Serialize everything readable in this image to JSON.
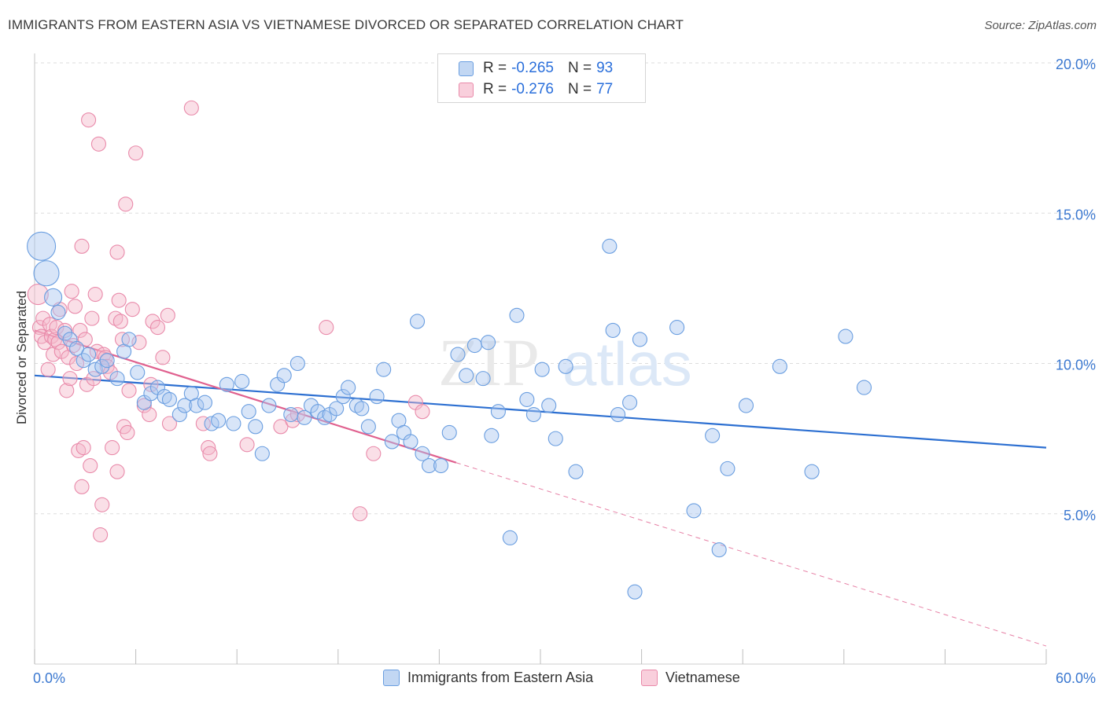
{
  "header": {
    "title": "IMMIGRANTS FROM EASTERN ASIA VS VIETNAMESE DIVORCED OR SEPARATED CORRELATION CHART",
    "source": "Source: ZipAtlas.com"
  },
  "watermark": {
    "zip": "ZIP",
    "atlas": "atlas"
  },
  "legend": {
    "rows": [
      {
        "r_label": "R =",
        "r_value": "-0.265",
        "n_label": "N =",
        "n_value": "93"
      },
      {
        "r_label": "R =",
        "r_value": "-0.276",
        "n_label": "N =",
        "n_value": "77"
      }
    ]
  },
  "colors": {
    "blue_fill": "#a9c6ef",
    "blue_stroke": "#6a9ee0",
    "blue_line": "#2c6fd1",
    "pink_fill": "#f5b7ca",
    "pink_stroke": "#e98aaa",
    "pink_line": "#e0618f",
    "grid": "#dddddd",
    "tick_text": "#3b78d0"
  },
  "chart_data": {
    "type": "scatter",
    "title": "IMMIGRANTS FROM EASTERN ASIA VS VIETNAMESE DIVORCED OR SEPARATED CORRELATION CHART",
    "xlabel": "",
    "ylabel": "Divorced or Separated",
    "xlim": [
      0,
      60
    ],
    "ylim": [
      0,
      20
    ],
    "x_tick_labels": [
      "0.0%",
      "60.0%"
    ],
    "y_ticks": [
      5,
      10,
      15,
      20
    ],
    "y_tick_labels": [
      "5.0%",
      "10.0%",
      "15.0%",
      "20.0%"
    ],
    "grid": true,
    "legend_placement": "top-center",
    "series": [
      {
        "name": "Immigrants from Eastern Asia",
        "color": "#a9c6ef",
        "r": -0.265,
        "n": 93,
        "trend": {
          "x": [
            0,
            60
          ],
          "y": [
            9.6,
            7.2
          ]
        },
        "points": [
          [
            0.4,
            13.9,
            18
          ],
          [
            0.7,
            13.0,
            16
          ],
          [
            1.1,
            12.2,
            11
          ],
          [
            1.4,
            11.7,
            9
          ],
          [
            1.8,
            11.0,
            9
          ],
          [
            2.1,
            10.8,
            9
          ],
          [
            2.5,
            10.5,
            9
          ],
          [
            2.9,
            10.1,
            9
          ],
          [
            3.2,
            10.3,
            9
          ],
          [
            3.6,
            9.8,
            9
          ],
          [
            4.0,
            9.9,
            9
          ],
          [
            4.3,
            10.1,
            9
          ],
          [
            4.9,
            9.5,
            9
          ],
          [
            5.3,
            10.4,
            9
          ],
          [
            5.6,
            10.8,
            9
          ],
          [
            6.1,
            9.7,
            9
          ],
          [
            6.5,
            8.7,
            9
          ],
          [
            6.9,
            9.0,
            9
          ],
          [
            7.3,
            9.2,
            9
          ],
          [
            7.7,
            8.9,
            9
          ],
          [
            8.0,
            8.8,
            9
          ],
          [
            8.6,
            8.3,
            9
          ],
          [
            8.9,
            8.6,
            9
          ],
          [
            9.3,
            9.0,
            9
          ],
          [
            9.6,
            8.6,
            9
          ],
          [
            10.1,
            8.7,
            9
          ],
          [
            10.5,
            8.0,
            9
          ],
          [
            10.9,
            8.1,
            9
          ],
          [
            11.4,
            9.3,
            9
          ],
          [
            11.8,
            8.0,
            9
          ],
          [
            12.3,
            9.4,
            9
          ],
          [
            12.7,
            8.4,
            9
          ],
          [
            13.1,
            7.9,
            9
          ],
          [
            13.5,
            7.0,
            9
          ],
          [
            13.9,
            8.6,
            9
          ],
          [
            14.4,
            9.3,
            9
          ],
          [
            14.8,
            9.6,
            9
          ],
          [
            15.2,
            8.3,
            9
          ],
          [
            15.6,
            10.0,
            9
          ],
          [
            16.0,
            8.2,
            9
          ],
          [
            16.4,
            8.6,
            9
          ],
          [
            16.8,
            8.4,
            9
          ],
          [
            17.2,
            8.2,
            9
          ],
          [
            17.5,
            8.3,
            9
          ],
          [
            17.9,
            8.5,
            9
          ],
          [
            18.3,
            8.9,
            9
          ],
          [
            18.6,
            9.2,
            9
          ],
          [
            19.1,
            8.6,
            9
          ],
          [
            19.4,
            8.5,
            9
          ],
          [
            19.8,
            7.9,
            9
          ],
          [
            20.3,
            8.9,
            9
          ],
          [
            20.7,
            9.8,
            9
          ],
          [
            21.2,
            7.4,
            9
          ],
          [
            21.6,
            8.1,
            9
          ],
          [
            21.9,
            7.7,
            9
          ],
          [
            22.3,
            7.4,
            9
          ],
          [
            22.7,
            11.4,
            9
          ],
          [
            23.0,
            7.0,
            9
          ],
          [
            23.4,
            6.6,
            9
          ],
          [
            24.1,
            6.6,
            9
          ],
          [
            24.6,
            7.7,
            9
          ],
          [
            25.1,
            10.3,
            9
          ],
          [
            25.6,
            9.6,
            9
          ],
          [
            26.1,
            10.6,
            9
          ],
          [
            26.6,
            9.5,
            9
          ],
          [
            26.9,
            10.7,
            9
          ],
          [
            27.1,
            7.6,
            9
          ],
          [
            27.5,
            8.4,
            9
          ],
          [
            28.2,
            4.2,
            9
          ],
          [
            28.6,
            11.6,
            9
          ],
          [
            29.2,
            8.8,
            9
          ],
          [
            29.6,
            8.3,
            9
          ],
          [
            30.1,
            9.8,
            9
          ],
          [
            30.5,
            8.6,
            9
          ],
          [
            30.9,
            7.5,
            9
          ],
          [
            31.5,
            9.9,
            9
          ],
          [
            32.1,
            6.4,
            9
          ],
          [
            34.1,
            13.9,
            9
          ],
          [
            34.3,
            11.1,
            9
          ],
          [
            34.6,
            8.3,
            9
          ],
          [
            35.3,
            8.7,
            9
          ],
          [
            35.6,
            2.4,
            9
          ],
          [
            35.9,
            10.8,
            9
          ],
          [
            38.1,
            11.2,
            9
          ],
          [
            39.1,
            5.1,
            9
          ],
          [
            40.2,
            7.6,
            9
          ],
          [
            40.6,
            3.8,
            9
          ],
          [
            41.1,
            6.5,
            9
          ],
          [
            42.2,
            8.6,
            9
          ],
          [
            44.2,
            9.9,
            9
          ],
          [
            46.1,
            6.4,
            9
          ],
          [
            48.1,
            10.9,
            9
          ],
          [
            49.2,
            9.2,
            9
          ]
        ]
      },
      {
        "name": "Vietnamese",
        "color": "#f5b7ca",
        "r": -0.276,
        "n": 77,
        "trend": {
          "x": [
            0,
            25
          ],
          "y": [
            11.1,
            6.7
          ]
        },
        "trend_extension": {
          "x": [
            25,
            60
          ],
          "y": [
            6.7,
            0.6
          ]
        },
        "points": [
          [
            0.2,
            12.3,
            13
          ],
          [
            0.3,
            11.2,
            9
          ],
          [
            0.4,
            10.9,
            9
          ],
          [
            0.5,
            11.5,
            9
          ],
          [
            0.6,
            10.7,
            9
          ],
          [
            0.8,
            9.8,
            9
          ],
          [
            0.9,
            11.3,
            9
          ],
          [
            1.0,
            10.9,
            9
          ],
          [
            1.1,
            10.3,
            9
          ],
          [
            1.2,
            10.8,
            9
          ],
          [
            1.3,
            11.2,
            9
          ],
          [
            1.4,
            10.7,
            9
          ],
          [
            1.5,
            11.8,
            9
          ],
          [
            1.6,
            10.4,
            9
          ],
          [
            1.8,
            11.1,
            9
          ],
          [
            1.9,
            9.1,
            9
          ],
          [
            2.0,
            10.2,
            9
          ],
          [
            2.1,
            9.5,
            9
          ],
          [
            2.2,
            12.4,
            9
          ],
          [
            2.3,
            10.6,
            9
          ],
          [
            2.4,
            11.9,
            9
          ],
          [
            2.5,
            10.0,
            9
          ],
          [
            2.6,
            7.1,
            9
          ],
          [
            2.7,
            11.1,
            9
          ],
          [
            2.8,
            13.9,
            9
          ],
          [
            2.8,
            5.9,
            9
          ],
          [
            2.9,
            7.2,
            9
          ],
          [
            3.0,
            10.8,
            9
          ],
          [
            3.1,
            9.3,
            9
          ],
          [
            3.2,
            18.1,
            9
          ],
          [
            3.3,
            6.6,
            9
          ],
          [
            3.4,
            11.5,
            9
          ],
          [
            3.5,
            9.5,
            9
          ],
          [
            3.6,
            12.3,
            9
          ],
          [
            3.7,
            10.4,
            9
          ],
          [
            3.8,
            17.3,
            9
          ],
          [
            3.9,
            4.3,
            9
          ],
          [
            4.0,
            5.3,
            9
          ],
          [
            4.1,
            10.3,
            9
          ],
          [
            4.2,
            10.2,
            9
          ],
          [
            4.3,
            9.9,
            9
          ],
          [
            4.5,
            9.7,
            9
          ],
          [
            4.6,
            7.2,
            9
          ],
          [
            4.8,
            11.5,
            9
          ],
          [
            4.9,
            6.4,
            9
          ],
          [
            4.9,
            13.7,
            9
          ],
          [
            5.0,
            12.1,
            9
          ],
          [
            5.1,
            11.4,
            9
          ],
          [
            5.2,
            10.8,
            9
          ],
          [
            5.3,
            7.9,
            9
          ],
          [
            5.4,
            15.3,
            9
          ],
          [
            5.5,
            7.7,
            9
          ],
          [
            5.6,
            9.1,
            9
          ],
          [
            5.8,
            11.8,
            9
          ],
          [
            6.0,
            17.0,
            9
          ],
          [
            6.2,
            10.7,
            9
          ],
          [
            6.5,
            8.6,
            9
          ],
          [
            6.8,
            8.3,
            9
          ],
          [
            6.9,
            9.3,
            9
          ],
          [
            7.0,
            11.4,
            9
          ],
          [
            7.3,
            11.2,
            9
          ],
          [
            7.6,
            10.2,
            9
          ],
          [
            7.9,
            11.6,
            9
          ],
          [
            8.0,
            8.0,
            9
          ],
          [
            9.3,
            18.5,
            9
          ],
          [
            10.0,
            8.0,
            9
          ],
          [
            10.3,
            7.2,
            9
          ],
          [
            10.4,
            7.0,
            9
          ],
          [
            12.6,
            7.3,
            9
          ],
          [
            14.6,
            7.9,
            9
          ],
          [
            15.3,
            8.1,
            9
          ],
          [
            15.6,
            8.3,
            9
          ],
          [
            17.3,
            11.2,
            9
          ],
          [
            19.3,
            5.0,
            9
          ],
          [
            20.1,
            7.0,
            9
          ],
          [
            22.6,
            8.7,
            9
          ],
          [
            23.0,
            8.4,
            9
          ]
        ]
      }
    ]
  },
  "bottom_legend": [
    {
      "label": "Immigrants from Eastern Asia"
    },
    {
      "label": "Vietnamese"
    }
  ]
}
